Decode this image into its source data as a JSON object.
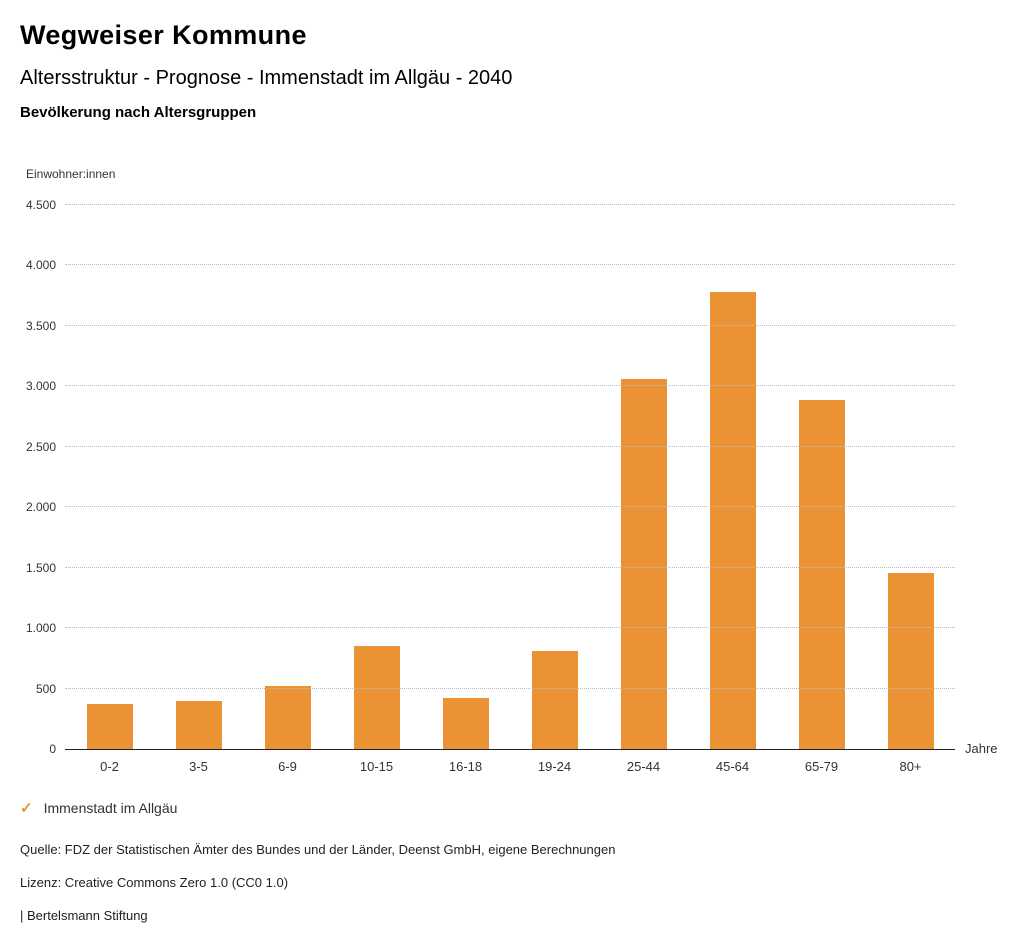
{
  "header": {
    "title": "Wegweiser Kommune",
    "subtitle": "Altersstruktur - Prognose - Immenstadt im Allgäu - 2040",
    "chart_heading": "Bevölkerung nach Altersgruppen"
  },
  "chart_data": {
    "type": "bar",
    "title": "Bevölkerung nach Altersgruppen",
    "y_axis_label": "Einwohner:innen",
    "x_axis_label": "Jahre",
    "categories": [
      "0-2",
      "3-5",
      "6-9",
      "10-15",
      "16-18",
      "19-24",
      "25-44",
      "45-64",
      "65-79",
      "80+"
    ],
    "series": [
      {
        "name": "Immenstadt im Allgäu",
        "values": [
          370,
          395,
          525,
          850,
          425,
          810,
          3060,
          3780,
          2890,
          1460
        ]
      }
    ],
    "ylim": [
      0,
      4500
    ],
    "yticks": [
      {
        "value": 0,
        "label": "0"
      },
      {
        "value": 500,
        "label": "500"
      },
      {
        "value": 1000,
        "label": "1.000"
      },
      {
        "value": 1500,
        "label": "1.500"
      },
      {
        "value": 2000,
        "label": "2.000"
      },
      {
        "value": 2500,
        "label": "2.500"
      },
      {
        "value": 3000,
        "label": "3.000"
      },
      {
        "value": 3500,
        "label": "3.500"
      },
      {
        "value": 4000,
        "label": "4.000"
      },
      {
        "value": 4500,
        "label": "4.500"
      }
    ],
    "grid": "dotted-horizontal",
    "legend_position": "bottom-left",
    "bar_color": "#EB9234"
  },
  "legend": {
    "check_icon": "✓",
    "label": "Immenstadt im Allgäu"
  },
  "footer": {
    "source": "Quelle: FDZ der Statistischen Ämter des Bundes und der Länder, Deenst GmbH, eigene Berechnungen",
    "license": "Lizenz: Creative Commons Zero 1.0 (CC0 1.0)",
    "attribution": "| Bertelsmann Stiftung"
  }
}
